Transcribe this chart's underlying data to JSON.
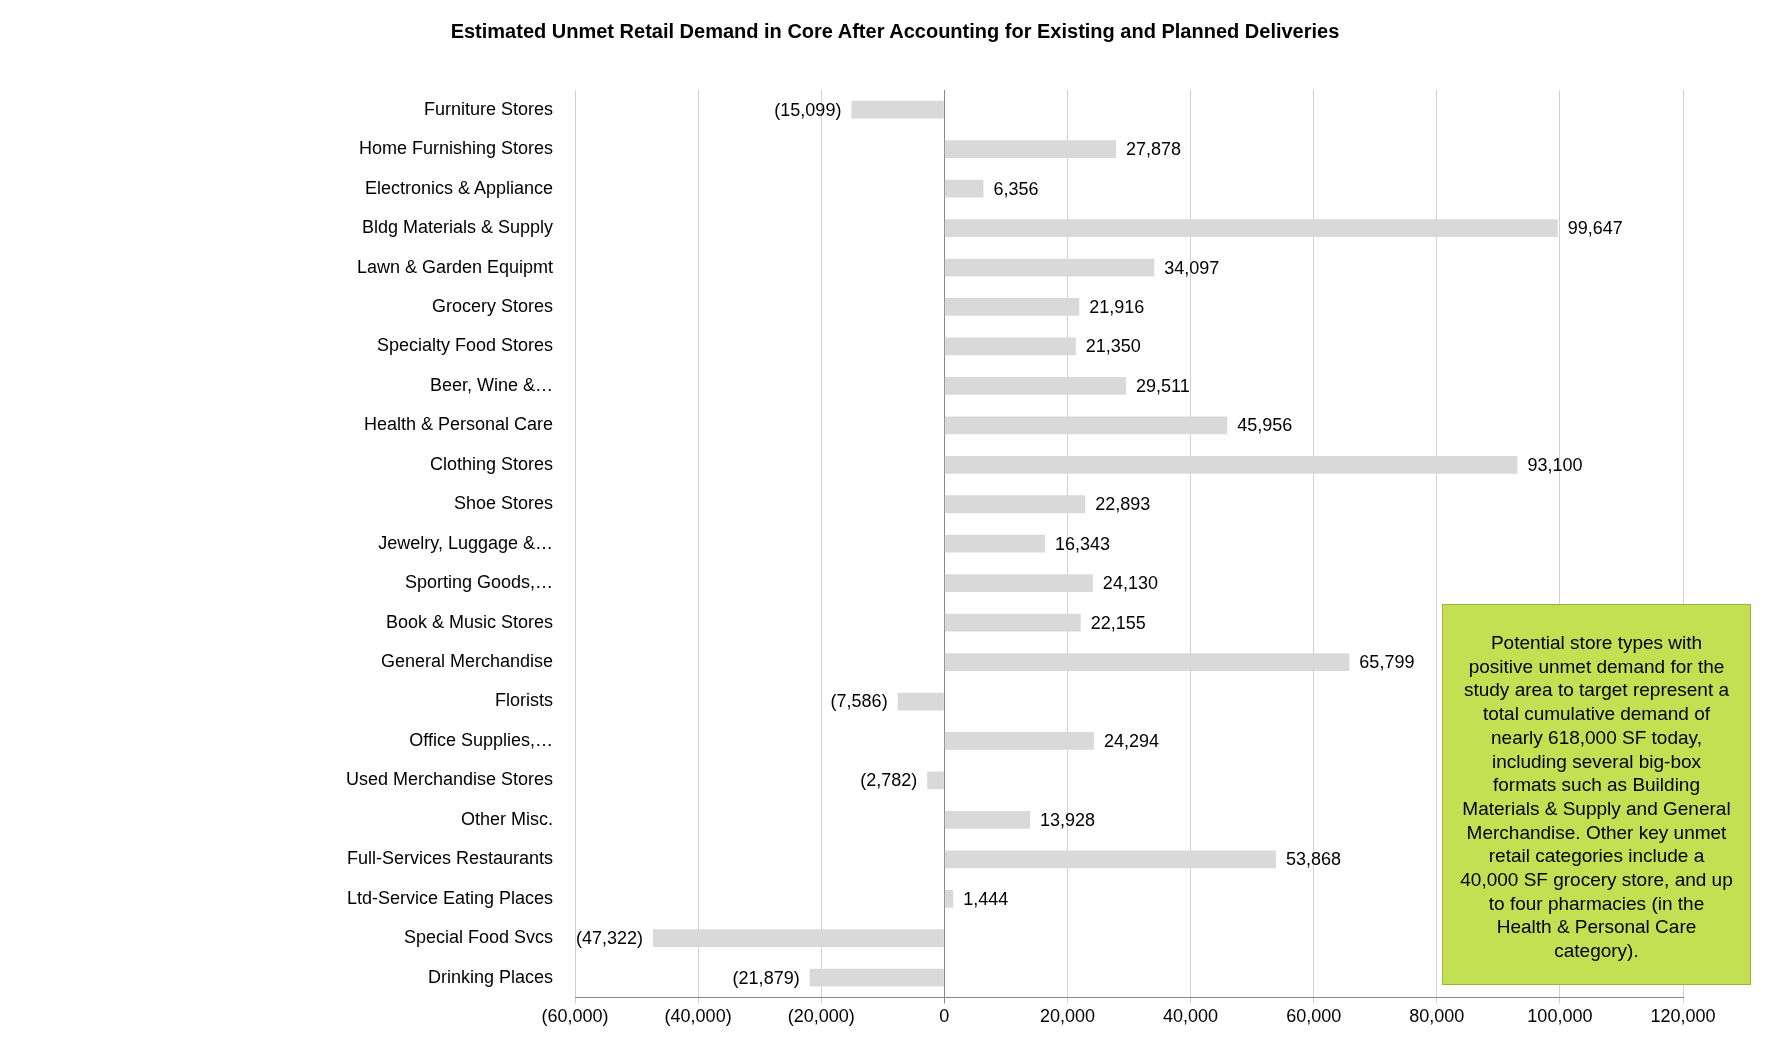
{
  "chart_data": {
    "type": "bar",
    "orientation": "horizontal",
    "title": "Estimated Unmet Retail Demand in Core After Accounting for Existing and Planned Deliveries",
    "categories": [
      "Furniture Stores",
      "Home Furnishing Stores",
      "Electronics & Appliance",
      "Bldg Materials & Supply",
      "Lawn & Garden Equipmt",
      "Grocery Stores",
      "Specialty Food Stores",
      "Beer, Wine &…",
      "Health & Personal Care",
      "Clothing Stores",
      "Shoe Stores",
      "Jewelry, Luggage &…",
      "Sporting Goods,…",
      "Book & Music Stores",
      "General Merchandise",
      "Florists",
      "Office Supplies,…",
      "Used Merchandise Stores",
      "Other Misc.",
      "Full-Services Restaurants",
      "Ltd-Service Eating Places",
      "Special Food Svcs",
      "Drinking Places"
    ],
    "values": [
      -15099,
      27878,
      6356,
      99647,
      34097,
      21916,
      21350,
      29511,
      45956,
      93100,
      22893,
      16343,
      24130,
      22155,
      65799,
      -7586,
      24294,
      -2782,
      13928,
      53868,
      1444,
      -47322,
      -21879
    ],
    "value_labels": [
      "(15,099)",
      "27,878",
      "6,356",
      "99,647",
      "34,097",
      "21,916",
      "21,350",
      "29,511",
      "45,956",
      "93,100",
      "22,893",
      "16,343",
      "24,130",
      "22,155",
      "65,799",
      "(7,586)",
      "24,294",
      "(2,782)",
      "13,928",
      "53,868",
      "1,444",
      "(47,322)",
      "(21,879)"
    ],
    "color": "#d9d9d9",
    "xlim": [
      -60000,
      120000
    ],
    "xticks": [
      {
        "value": -60000,
        "label": "(60,000)"
      },
      {
        "value": -40000,
        "label": "(40,000)"
      },
      {
        "value": -20000,
        "label": "(20,000)"
      },
      0,
      {
        "value": 20000,
        "label": "20,000"
      },
      {
        "value": 40000,
        "label": "40,000"
      },
      {
        "value": 60000,
        "label": "60,000"
      },
      {
        "value": 80000,
        "label": "80,000"
      },
      {
        "value": 100000,
        "label": "100,000"
      },
      {
        "value": 120000,
        "label": "120,000"
      }
    ],
    "grid": "x",
    "legend": false,
    "annotations": [
      "Potential store types with positive unmet demand for the study area to target represent a total cumulative demand of nearly 618,000 SF today, including several big-box formats such as Building Materials & Supply and General Merchandise.  Other key unmet retail categories include a 40,000 SF grocery store, and up to four pharmacies (in the Health & Personal Care category)."
    ]
  }
}
